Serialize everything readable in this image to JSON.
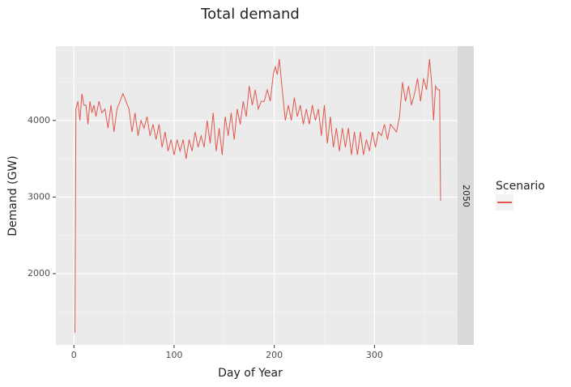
{
  "chart_data": {
    "type": "line",
    "title": "Total demand",
    "x_label": "Day of Year",
    "y_label": "Demand (GW)",
    "facet_label": "2050",
    "legend_title": "Scenario",
    "x": [
      1,
      2,
      4,
      6,
      8,
      10,
      12,
      14,
      16,
      18,
      20,
      22,
      25,
      28,
      31,
      34,
      37,
      40,
      43,
      46,
      49,
      52,
      55,
      58,
      61,
      64,
      67,
      70,
      73,
      76,
      79,
      82,
      85,
      88,
      91,
      94,
      97,
      100,
      103,
      106,
      109,
      112,
      115,
      118,
      121,
      124,
      127,
      130,
      133,
      136,
      139,
      142,
      145,
      148,
      151,
      154,
      157,
      160,
      163,
      166,
      169,
      172,
      175,
      178,
      181,
      184,
      187,
      190,
      193,
      196,
      199,
      201,
      203,
      205,
      208,
      211,
      214,
      217,
      220,
      223,
      226,
      229,
      232,
      235,
      238,
      241,
      244,
      247,
      250,
      253,
      256,
      259,
      262,
      265,
      268,
      271,
      274,
      277,
      280,
      283,
      286,
      289,
      292,
      295,
      298,
      301,
      304,
      307,
      310,
      313,
      316,
      319,
      322,
      325,
      328,
      331,
      334,
      337,
      340,
      343,
      346,
      349,
      352,
      355,
      357,
      359,
      361,
      363,
      365,
      366
    ],
    "series": [
      {
        "color": "#e0574b",
        "values": [
          1230,
          4150,
          4250,
          4000,
          4350,
          4200,
          4200,
          3950,
          4250,
          4100,
          4200,
          4050,
          4250,
          4100,
          4150,
          3900,
          4200,
          3850,
          4150,
          4250,
          4350,
          4250,
          4150,
          3850,
          4100,
          3800,
          4000,
          3900,
          4050,
          3800,
          3950,
          3750,
          3950,
          3650,
          3850,
          3600,
          3750,
          3550,
          3750,
          3600,
          3750,
          3500,
          3750,
          3600,
          3850,
          3650,
          3800,
          3650,
          4000,
          3700,
          4100,
          3600,
          3900,
          3550,
          4050,
          3800,
          4100,
          3750,
          4150,
          3950,
          4250,
          4050,
          4450,
          4200,
          4400,
          4150,
          4250,
          4250,
          4400,
          4250,
          4600,
          4700,
          4600,
          4800,
          4400,
          4000,
          4200,
          4000,
          4300,
          4050,
          4200,
          3950,
          4150,
          3950,
          4200,
          4000,
          4150,
          3800,
          4200,
          3700,
          4050,
          3650,
          3900,
          3600,
          3900,
          3650,
          3900,
          3550,
          3850,
          3550,
          3850,
          3550,
          3750,
          3600,
          3850,
          3650,
          3850,
          3800,
          3950,
          3750,
          3950,
          3900,
          3850,
          4050,
          4500,
          4250,
          4450,
          4200,
          4350,
          4550,
          4250,
          4550,
          4400,
          4800,
          4500,
          4000,
          4450,
          4400,
          4400,
          2950
        ]
      }
    ],
    "xlim": [
      -18,
      383
    ],
    "ylim": [
      1070,
      4970
    ],
    "xticks": [
      0,
      100,
      200,
      300
    ],
    "yticks": [
      2000,
      3000,
      4000
    ],
    "grid": true
  }
}
